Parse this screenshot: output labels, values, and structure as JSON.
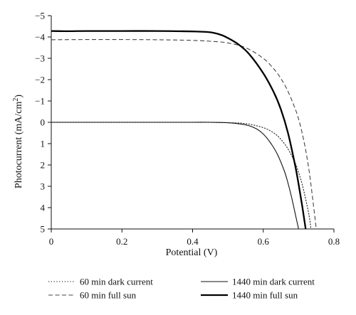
{
  "chart_data": {
    "type": "line",
    "xlabel": "Potential (V)",
    "ylabel_main": "Photocurrent (mA/cm",
    "ylabel_sup": "2",
    "ylabel_close": ")",
    "xlim": [
      0,
      0.8
    ],
    "ylim": [
      -5,
      5
    ],
    "y_inverted": true,
    "grid": false,
    "x_ticks": [
      0,
      0.2,
      0.4,
      0.6,
      0.8
    ],
    "x_tick_labels": [
      "0",
      "0.2",
      "0.4",
      "0.6",
      "0.8"
    ],
    "y_ticks": [
      -5,
      -4,
      -3,
      -2,
      -1,
      0,
      1,
      2,
      3,
      4,
      5
    ],
    "y_tick_labels": [
      "−5",
      "−4",
      "−3",
      "−2",
      "−1",
      "0",
      "1",
      "2",
      "3",
      "4",
      "5"
    ],
    "legend_position": "bottom",
    "series": [
      {
        "name": "60 min dark current",
        "style": "dotted",
        "color": "#333333",
        "x": [
          0,
          0.1,
          0.2,
          0.3,
          0.4,
          0.45,
          0.5,
          0.55,
          0.6,
          0.63,
          0.65,
          0.67,
          0.69,
          0.7,
          0.71,
          0.72,
          0.73,
          0.735
        ],
        "y": [
          0,
          0,
          0,
          0,
          0,
          0,
          0.02,
          0.06,
          0.25,
          0.5,
          0.8,
          1.25,
          1.9,
          2.35,
          2.9,
          3.6,
          4.4,
          5.0
        ]
      },
      {
        "name": "1440 min dark current",
        "style": "solid",
        "color": "#111111",
        "x": [
          0,
          0.1,
          0.2,
          0.3,
          0.4,
          0.45,
          0.5,
          0.55,
          0.58,
          0.6,
          0.62,
          0.64,
          0.66,
          0.67,
          0.68,
          0.69,
          0.7
        ],
        "y": [
          0,
          0,
          0,
          0,
          0,
          0,
          0.02,
          0.12,
          0.3,
          0.55,
          0.95,
          1.5,
          2.3,
          2.85,
          3.5,
          4.25,
          5.0
        ]
      },
      {
        "name": "60 min full sun",
        "style": "dashed",
        "color": "#444444",
        "x": [
          0,
          0.1,
          0.2,
          0.3,
          0.4,
          0.45,
          0.5,
          0.55,
          0.6,
          0.63,
          0.65,
          0.67,
          0.69,
          0.7,
          0.71,
          0.72,
          0.73,
          0.74,
          0.75
        ],
        "y": [
          -3.87,
          -3.88,
          -3.88,
          -3.87,
          -3.84,
          -3.8,
          -3.72,
          -3.5,
          -3.0,
          -2.5,
          -2.05,
          -1.45,
          -0.65,
          -0.15,
          0.5,
          1.3,
          2.3,
          3.6,
          5.0
        ]
      },
      {
        "name": "1440 min full sun",
        "style": "solid-thick",
        "color": "#000000",
        "x": [
          0,
          0.05,
          0.1,
          0.2,
          0.3,
          0.4,
          0.45,
          0.48,
          0.5,
          0.53,
          0.56,
          0.6,
          0.63,
          0.65,
          0.67,
          0.69,
          0.7,
          0.71,
          0.72
        ],
        "y": [
          -4.28,
          -4.27,
          -4.28,
          -4.28,
          -4.28,
          -4.26,
          -4.22,
          -4.1,
          -3.95,
          -3.65,
          -3.2,
          -2.3,
          -1.4,
          -0.6,
          0.5,
          2.0,
          2.9,
          3.9,
          5.0
        ]
      }
    ]
  }
}
